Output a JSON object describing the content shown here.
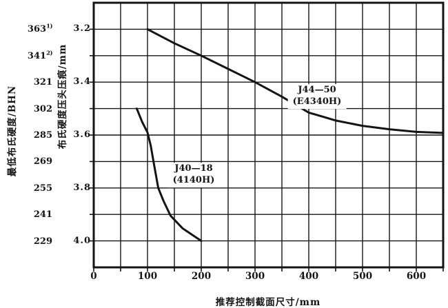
{
  "figure": {
    "ink_color": "#141414",
    "paper_color": "#ffffff"
  },
  "y_axis_outer": {
    "title": "最低布氏硬度/BHN",
    "labels": [
      {
        "text": "363",
        "footnote": "1)",
        "at": 3.2
      },
      {
        "text": "341",
        "footnote": "2)",
        "at": 3.3
      },
      {
        "text": "321",
        "footnote": "",
        "at": 3.4
      },
      {
        "text": "302",
        "footnote": "",
        "at": 3.5
      },
      {
        "text": "285",
        "footnote": "",
        "at": 3.6
      },
      {
        "text": "269",
        "footnote": "",
        "at": 3.7
      },
      {
        "text": "255",
        "footnote": "",
        "at": 3.8
      },
      {
        "text": "241",
        "footnote": "",
        "at": 3.9
      },
      {
        "text": "229",
        "footnote": "",
        "at": 4.0
      }
    ]
  },
  "y_axis_inner": {
    "title": "布氏硬度压头压痕/mm",
    "labels": [
      {
        "text": "3.2",
        "at": 3.2
      },
      {
        "text": "3.4",
        "at": 3.4
      },
      {
        "text": "3.6",
        "at": 3.6
      },
      {
        "text": "3.8",
        "at": 3.8
      },
      {
        "text": "4.0",
        "at": 4.0
      }
    ]
  },
  "x_axis": {
    "title": "推荐控制截面尺寸/mm",
    "labels": [
      {
        "text": "0",
        "at": 0
      },
      {
        "text": "100",
        "at": 100
      },
      {
        "text": "200",
        "at": 200
      },
      {
        "text": "300",
        "at": 300
      },
      {
        "text": "400",
        "at": 400
      },
      {
        "text": "500",
        "at": 500
      },
      {
        "text": "600",
        "at": 600
      }
    ]
  },
  "chart_data": {
    "type": "line",
    "title": "",
    "xlabel": "推荐控制截面尺寸/mm",
    "ylabel_inner": "布氏硬度压头压痕/mm",
    "ylabel_outer": "最低布氏硬度/BHN",
    "xlim": [
      0,
      650
    ],
    "ylim": [
      3.1,
      4.1
    ],
    "y_axis_inverted_note": "indentation diameter increases downward; top border = 3.1 mm, bottom border = 4.1 mm",
    "x_grid_step": 50,
    "y_grid_step": 0.1,
    "grid": true,
    "legend_position": "labels-inside-plot",
    "bhn_vs_indentation": [
      {
        "bhn": 363,
        "indentation_mm": 3.2
      },
      {
        "bhn": 341,
        "indentation_mm": 3.3
      },
      {
        "bhn": 321,
        "indentation_mm": 3.4
      },
      {
        "bhn": 302,
        "indentation_mm": 3.5
      },
      {
        "bhn": 285,
        "indentation_mm": 3.6
      },
      {
        "bhn": 269,
        "indentation_mm": 3.7
      },
      {
        "bhn": 255,
        "indentation_mm": 3.8
      },
      {
        "bhn": 241,
        "indentation_mm": 3.9
      },
      {
        "bhn": 229,
        "indentation_mm": 4.0
      }
    ],
    "series": [
      {
        "name": "J44—50",
        "subname": "(E4340H)",
        "x": [
          100,
          150,
          200,
          250,
          300,
          350,
          400,
          425,
          450,
          500,
          550,
          600,
          650
        ],
        "y": [
          3.2,
          3.253,
          3.3,
          3.35,
          3.4,
          3.455,
          3.515,
          3.53,
          3.545,
          3.565,
          3.578,
          3.588,
          3.592
        ]
      },
      {
        "name": "J40—18",
        "subname": "(4140H)",
        "x": [
          80,
          90,
          100,
          106,
          113,
          120,
          130,
          143,
          165,
          200
        ],
        "y": [
          3.5,
          3.55,
          3.59,
          3.64,
          3.72,
          3.8,
          3.85,
          3.905,
          3.952,
          4.0
        ]
      }
    ]
  }
}
